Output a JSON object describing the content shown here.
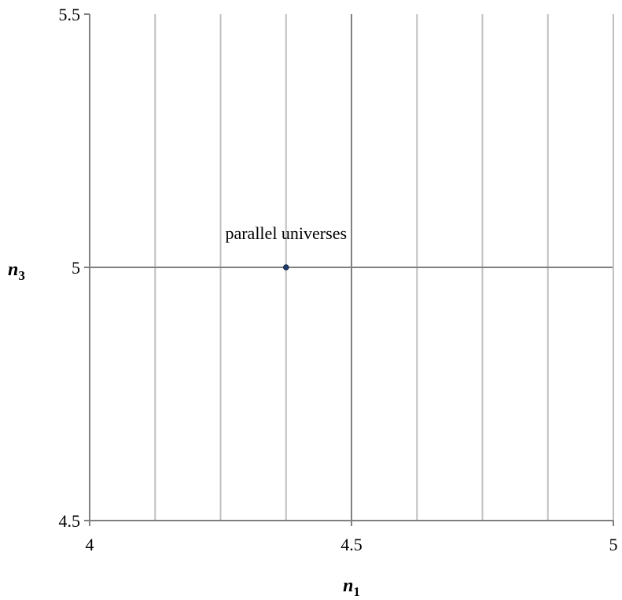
{
  "chart_data": {
    "type": "scatter",
    "title": "",
    "xlabel": {
      "main": "n",
      "sub": "1"
    },
    "ylabel": {
      "main": "n",
      "sub": "3"
    },
    "xlim": [
      4,
      5
    ],
    "ylim": [
      4.5,
      5.5
    ],
    "x_ticks": [
      {
        "value": 4,
        "label": "4"
      },
      {
        "value": 4.5,
        "label": "4.5"
      },
      {
        "value": 5,
        "label": "5"
      }
    ],
    "y_ticks": [
      {
        "value": 4.5,
        "label": "4.5"
      },
      {
        "value": 5,
        "label": "5"
      },
      {
        "value": 5.5,
        "label": "5.5"
      }
    ],
    "x_minor_gridlines": [
      4.125,
      4.25,
      4.375,
      4.625,
      4.75,
      4.875
    ],
    "x_major_gridlines": [
      4.5
    ],
    "y_major_gridlines": [
      5
    ],
    "grid": true,
    "legend": "none",
    "series": [
      {
        "points": [
          {
            "x": 4.375,
            "y": 5
          }
        ]
      }
    ],
    "annotations": [
      {
        "text": "parallel universes",
        "x": 4.375,
        "y": 5
      }
    ],
    "colors": {
      "marker": "#1f3f73",
      "axis": "#808080",
      "minor_grid": "#bfbfbf",
      "major_grid": "#808080"
    }
  }
}
